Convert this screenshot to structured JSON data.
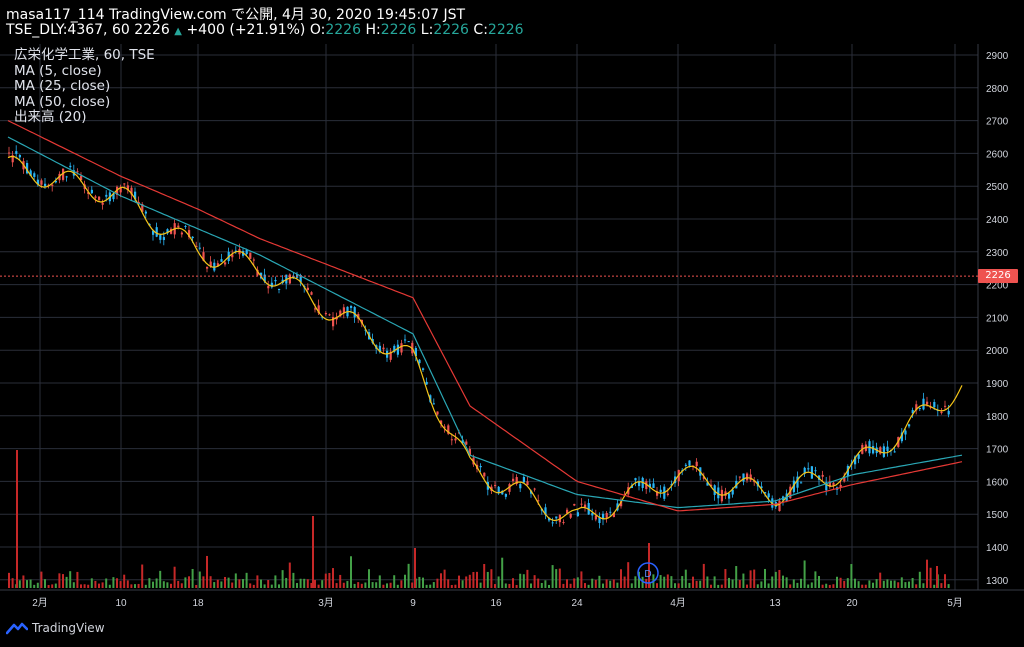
{
  "header": {
    "line1": "masa117_114 TradingView.com で公開, 4月 30, 2020 19:45:07 JST",
    "symbol_prefix": "TSE_DLY:4367, 60 2226",
    "change": "+400 (+21.91%)",
    "o_label": "O:",
    "o_value": "2226",
    "h_label": "H:",
    "h_value": "2226",
    "l_label": "L:",
    "l_value": "2226",
    "c_label": "C:",
    "c_value": "2226"
  },
  "legend": [
    "広栄化学工業, 60, TSE",
    "MA (5, close)",
    "MA (25, close)",
    "MA (50, close)",
    "出来高 (20)"
  ],
  "price_axis": {
    "ticks": [
      "2900",
      "2800",
      "2700",
      "2600",
      "2500",
      "2400",
      "2300",
      "2200",
      "2100",
      "2000",
      "1900",
      "1800",
      "1700",
      "1600",
      "1500",
      "1400",
      "1300"
    ],
    "last_price_tag": "2226"
  },
  "time_axis": {
    "ticks": [
      "2月",
      "10",
      "18",
      "3月",
      "9",
      "16",
      "24",
      "4月",
      "13",
      "20",
      "5月"
    ]
  },
  "event_marker": "D",
  "footer": {
    "brand": "TradingView"
  },
  "colors": {
    "up": "#26a69a",
    "down": "#ef5350",
    "up_candle": "#29b6f6",
    "ma5": "#f5c518",
    "ma25": "#2aa7b5",
    "ma50": "#e53935",
    "grid": "#2a2e39",
    "axis_text": "#d1d4dc"
  },
  "chart_data": {
    "type": "line",
    "title": "広栄化学工業, 60, TSE",
    "ylim": [
      1250,
      2950
    ],
    "series": [
      {
        "name": "MA (5, close)",
        "x": [
          "2月",
          "10",
          "18",
          "3月",
          "9",
          "16",
          "24",
          "4月",
          "13",
          "20",
          "5月"
        ],
        "values": [
          2560,
          2470,
          2300,
          2250,
          1970,
          1640,
          1480,
          1620,
          1560,
          1640,
          1890
        ]
      },
      {
        "name": "MA (25, close)",
        "x": [
          "2月",
          "10",
          "18",
          "3月",
          "9",
          "16",
          "24",
          "4月",
          "13",
          "20",
          "5月"
        ],
        "values": [
          2650,
          2470,
          2370,
          2290,
          2050,
          1680,
          1560,
          1520,
          1540,
          1620,
          1680
        ]
      },
      {
        "name": "MA (50, close)",
        "x": [
          "2月",
          "10",
          "18",
          "3月",
          "9",
          "16",
          "24",
          "4月",
          "13",
          "20",
          "5月"
        ],
        "values": [
          2700,
          2530,
          2430,
          2340,
          2160,
          1830,
          1600,
          1510,
          1530,
          1590,
          1660
        ]
      }
    ]
  }
}
